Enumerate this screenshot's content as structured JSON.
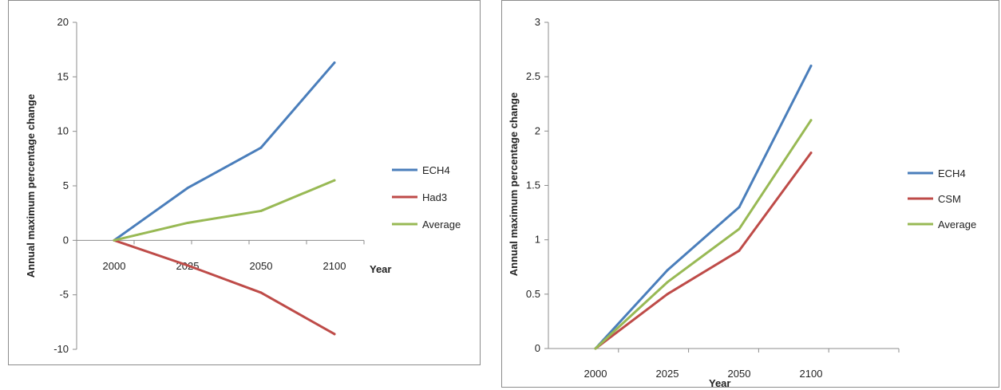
{
  "chart_data": [
    {
      "type": "line",
      "title": "",
      "xlabel": "Year",
      "ylabel": "Annual maximum percentage change",
      "x": [
        2000,
        2025,
        2050,
        2100
      ],
      "x_tick_labels": [
        "2000",
        "2025",
        "2050",
        "2100"
      ],
      "ylim": [
        -10,
        20
      ],
      "y_ticks": [
        -10,
        -5,
        0,
        5,
        10,
        15,
        20
      ],
      "y_tick_labels": [
        "-10",
        "-5",
        "0",
        "5",
        "10",
        "15",
        "20"
      ],
      "grid": false,
      "legend_position": "right",
      "series": [
        {
          "name": "ECH4",
          "color": "#4a7ebb",
          "values": [
            0,
            4.8,
            8.5,
            16.3
          ]
        },
        {
          "name": "Had3",
          "color": "#be4b48",
          "values": [
            0,
            -2.3,
            -4.8,
            -8.6
          ]
        },
        {
          "name": "Average",
          "color": "#98b954",
          "values": [
            0,
            1.6,
            2.7,
            5.5
          ]
        }
      ]
    },
    {
      "type": "line",
      "title": "",
      "xlabel": "Year",
      "ylabel": "Annual maximum percentage change",
      "x": [
        2000,
        2025,
        2050,
        2100
      ],
      "x_tick_labels": [
        "2000",
        "2025",
        "2050",
        "2100"
      ],
      "ylim": [
        0,
        3
      ],
      "y_ticks": [
        0,
        0.5,
        1,
        1.5,
        2,
        2.5,
        3
      ],
      "y_tick_labels": [
        "0",
        "0.5",
        "1",
        "1.5",
        "2",
        "2.5",
        "3"
      ],
      "grid": false,
      "legend_position": "right",
      "series": [
        {
          "name": "ECH4",
          "color": "#4a7ebb",
          "values": [
            0,
            0.72,
            1.3,
            2.6
          ]
        },
        {
          "name": "CSM",
          "color": "#be4b48",
          "values": [
            0,
            0.5,
            0.9,
            1.8
          ]
        },
        {
          "name": "Average",
          "color": "#98b954",
          "values": [
            0,
            0.61,
            1.1,
            2.1
          ]
        }
      ]
    }
  ]
}
